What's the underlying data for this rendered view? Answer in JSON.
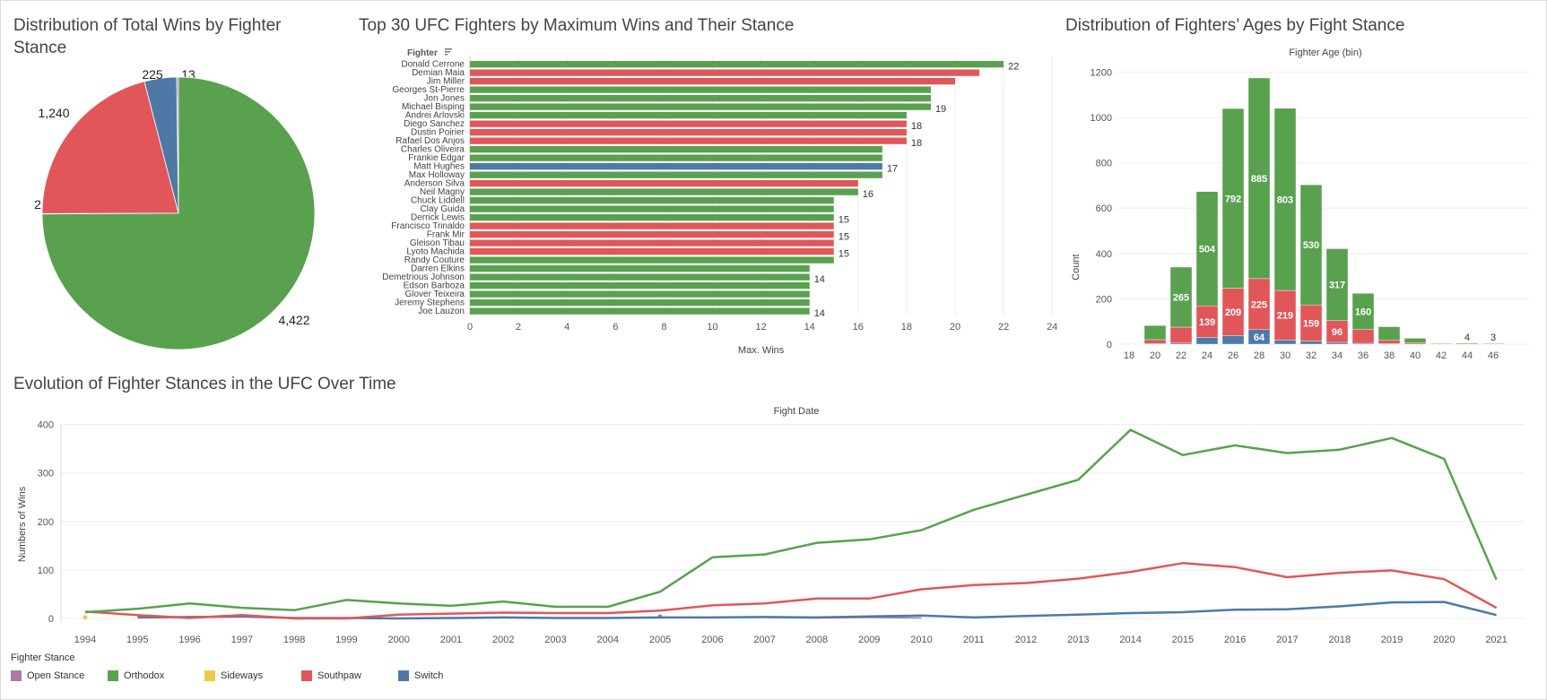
{
  "dashboard": {
    "pie_title": "Distribution of Total Wins by Fighter Stance",
    "bar_title": "Top 30 UFC Fighters by Maximum Wins and Their Stance",
    "hist_title": "Distribution of Fighters’ Ages by Fight Stance",
    "line_title": "Evolution of Fighter Stances in the UFC Over Time"
  },
  "colors": {
    "Open Stance": "#b07aa1",
    "Orthodox": "#59a14f",
    "Sideways": "#edc948",
    "Southpaw": "#e15759",
    "Switch": "#4e79a7"
  },
  "legend": {
    "title": "Fighter Stance",
    "items": [
      "Open Stance",
      "Orthodox",
      "Sideways",
      "Southpaw",
      "Switch"
    ]
  },
  "chart_data": [
    {
      "type": "pie",
      "title": "Distribution of Total Wins by Fighter Stance",
      "slices": [
        {
          "label": "Open Stance",
          "value": 13,
          "display": "13"
        },
        {
          "label": "Sideways",
          "value": 2,
          "display": "2"
        },
        {
          "label": "Southpaw",
          "value": 1240,
          "display": "1,240"
        },
        {
          "label": "Switch",
          "value": 225,
          "display": "225"
        },
        {
          "label": "Orthodox",
          "value": 4422,
          "display": "4,422"
        }
      ]
    },
    {
      "type": "bar",
      "orientation": "horizontal",
      "title": "Top 30 UFC Fighters by Maximum Wins and Their Stance",
      "ylabel": "Fighter",
      "xlabel": "Max. Wins",
      "xlim": [
        0,
        24
      ],
      "xticks": [
        0,
        2,
        4,
        6,
        8,
        10,
        12,
        14,
        16,
        18,
        20,
        22,
        24
      ],
      "bars": [
        {
          "name": "Donald Cerrone",
          "value": 22,
          "stance": "Orthodox",
          "label": "22"
        },
        {
          "name": "Demian Maia",
          "value": 21,
          "stance": "Southpaw",
          "label": ""
        },
        {
          "name": "Jim Miller",
          "value": 20,
          "stance": "Southpaw",
          "label": ""
        },
        {
          "name": "Georges St-Pierre",
          "value": 19,
          "stance": "Orthodox",
          "label": ""
        },
        {
          "name": "Jon Jones",
          "value": 19,
          "stance": "Orthodox",
          "label": ""
        },
        {
          "name": "Michael Bisping",
          "value": 19,
          "stance": "Orthodox",
          "label": "19"
        },
        {
          "name": "Andrei Arlovski",
          "value": 18,
          "stance": "Orthodox",
          "label": ""
        },
        {
          "name": "Diego Sanchez",
          "value": 18,
          "stance": "Southpaw",
          "label": "18"
        },
        {
          "name": "Dustin Poirier",
          "value": 18,
          "stance": "Southpaw",
          "label": ""
        },
        {
          "name": "Rafael Dos Anjos",
          "value": 18,
          "stance": "Southpaw",
          "label": "18"
        },
        {
          "name": "Charles Oliveira",
          "value": 17,
          "stance": "Orthodox",
          "label": ""
        },
        {
          "name": "Frankie Edgar",
          "value": 17,
          "stance": "Orthodox",
          "label": ""
        },
        {
          "name": "Matt Hughes",
          "value": 17,
          "stance": "Switch",
          "label": "17"
        },
        {
          "name": "Max Holloway",
          "value": 17,
          "stance": "Orthodox",
          "label": ""
        },
        {
          "name": "Anderson Silva",
          "value": 16,
          "stance": "Southpaw",
          "label": ""
        },
        {
          "name": "Neil Magny",
          "value": 16,
          "stance": "Orthodox",
          "label": "16"
        },
        {
          "name": "Chuck Liddell",
          "value": 15,
          "stance": "Orthodox",
          "label": ""
        },
        {
          "name": "Clay Guida",
          "value": 15,
          "stance": "Orthodox",
          "label": ""
        },
        {
          "name": "Derrick Lewis",
          "value": 15,
          "stance": "Orthodox",
          "label": "15"
        },
        {
          "name": "Francisco Trinaldo",
          "value": 15,
          "stance": "Southpaw",
          "label": ""
        },
        {
          "name": "Frank Mir",
          "value": 15,
          "stance": "Southpaw",
          "label": "15"
        },
        {
          "name": "Gleison Tibau",
          "value": 15,
          "stance": "Southpaw",
          "label": ""
        },
        {
          "name": "Lyoto Machida",
          "value": 15,
          "stance": "Southpaw",
          "label": "15"
        },
        {
          "name": "Randy Couture",
          "value": 15,
          "stance": "Orthodox",
          "label": ""
        },
        {
          "name": "Darren Elkins",
          "value": 14,
          "stance": "Orthodox",
          "label": ""
        },
        {
          "name": "Demetrious Johnson",
          "value": 14,
          "stance": "Orthodox",
          "label": "14"
        },
        {
          "name": "Edson Barboza",
          "value": 14,
          "stance": "Orthodox",
          "label": ""
        },
        {
          "name": "Glover Teixeira",
          "value": 14,
          "stance": "Orthodox",
          "label": ""
        },
        {
          "name": "Jeremy Stephens",
          "value": 14,
          "stance": "Orthodox",
          "label": ""
        },
        {
          "name": "Joe Lauzon",
          "value": 14,
          "stance": "Orthodox",
          "label": "14"
        }
      ]
    },
    {
      "type": "bar",
      "stacked": true,
      "title": "Distribution of Fighters’ Ages by Fight Stance",
      "top_label": "Fighter Age (bin)",
      "ylabel": "Count",
      "ylim": [
        0,
        1200
      ],
      "yticks": [
        0,
        200,
        400,
        600,
        800,
        1000,
        1200
      ],
      "categories": [
        "18",
        "20",
        "22",
        "24",
        "26",
        "28",
        "30",
        "32",
        "34",
        "36",
        "38",
        "40",
        "42",
        "44",
        "46"
      ],
      "series": [
        {
          "name": "Switch",
          "values": [
            0,
            3,
            5,
            30,
            38,
            64,
            18,
            14,
            8,
            4,
            2,
            0,
            0,
            0,
            0
          ]
        },
        {
          "name": "Southpaw",
          "values": [
            1,
            17,
            70,
            139,
            209,
            225,
            219,
            159,
            96,
            60,
            15,
            6,
            1,
            0,
            0
          ]
        },
        {
          "name": "Orthodox",
          "values": [
            2,
            62,
            265,
            504,
            792,
            885,
            803,
            530,
            317,
            160,
            60,
            20,
            3,
            4,
            3
          ]
        }
      ],
      "data_labels": {
        "Switch": [
          "",
          "",
          "",
          "",
          "",
          "64",
          "",
          "",
          "",
          "",
          "",
          "",
          "",
          "",
          ""
        ],
        "Southpaw": [
          "",
          "",
          "",
          "139",
          "209",
          "225",
          "219",
          "159",
          "96",
          "",
          "",
          "",
          "",
          "",
          ""
        ],
        "Orthodox": [
          "",
          "",
          "265",
          "504",
          "792",
          "885",
          "803",
          "530",
          "317",
          "160",
          "",
          "",
          "",
          "4",
          "3"
        ]
      }
    },
    {
      "type": "line",
      "title": "Evolution of Fighter Stances in the UFC Over Time",
      "top_label": "Fight Date",
      "ylabel": "Numbers of Wins",
      "ylim": [
        0,
        400
      ],
      "yticks": [
        0,
        100,
        200,
        300,
        400
      ],
      "x": [
        1994,
        1995,
        1996,
        1997,
        1998,
        1999,
        2000,
        2001,
        2002,
        2003,
        2004,
        2005,
        2006,
        2007,
        2008,
        2009,
        2010,
        2011,
        2012,
        2013,
        2014,
        2015,
        2016,
        2017,
        2018,
        2019,
        2020,
        2021
      ],
      "series": [
        {
          "name": "Orthodox",
          "values": [
            13,
            20,
            31,
            22,
            17,
            38,
            31,
            26,
            35,
            24,
            24,
            55,
            126,
            132,
            156,
            163,
            182,
            224,
            255,
            286,
            389,
            337,
            357,
            341,
            348,
            372,
            329,
            80
          ]
        },
        {
          "name": "Southpaw",
          "values": [
            14,
            7,
            1,
            7,
            0,
            0,
            8,
            10,
            12,
            11,
            11,
            16,
            27,
            31,
            41,
            41,
            60,
            69,
            73,
            82,
            96,
            114,
            106,
            85,
            94,
            99,
            81,
            22
          ]
        },
        {
          "name": "Switch",
          "values": [
            null,
            2,
            3,
            4,
            1,
            1,
            0,
            1,
            2,
            1,
            1,
            2,
            2,
            3,
            2,
            4,
            6,
            2,
            5,
            8,
            11,
            13,
            18,
            19,
            25,
            33,
            34,
            7
          ]
        },
        {
          "name": "Open Stance",
          "values": [
            null,
            null,
            null,
            null,
            null,
            null,
            null,
            null,
            null,
            null,
            null,
            4,
            null,
            2,
            1,
            2,
            1,
            null,
            null,
            null,
            null,
            null,
            null,
            null,
            null,
            null,
            null,
            null
          ]
        },
        {
          "name": "Sideways",
          "values": [
            2,
            null,
            null,
            null,
            null,
            null,
            null,
            null,
            null,
            null,
            null,
            null,
            null,
            null,
            null,
            null,
            null,
            null,
            null,
            null,
            null,
            null,
            null,
            null,
            null,
            null,
            null,
            null
          ]
        }
      ]
    }
  ]
}
